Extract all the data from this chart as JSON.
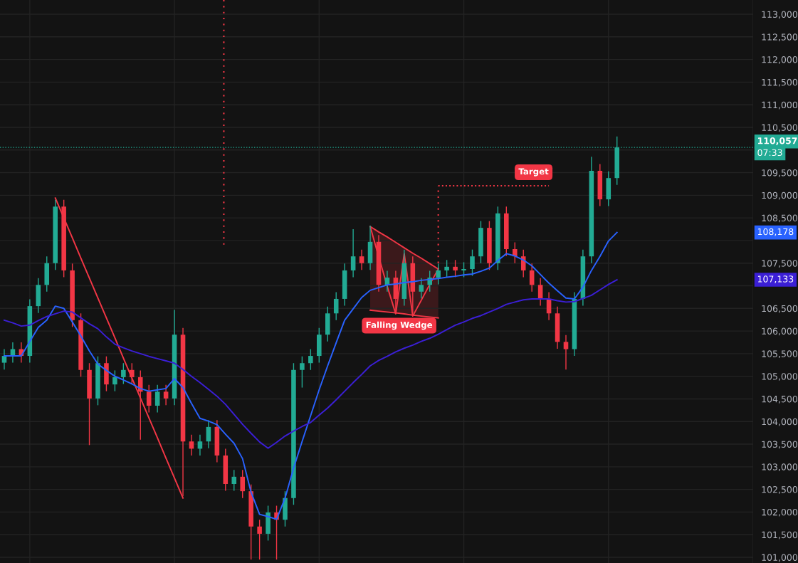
{
  "chart_data": {
    "type": "candlestick",
    "categories": [
      null,
      null,
      null,
      null,
      null,
      null,
      null,
      null,
      null,
      null,
      null,
      null,
      null,
      null,
      null,
      null,
      null,
      null,
      null,
      null,
      null,
      null,
      null,
      null,
      null,
      null,
      null,
      null,
      null,
      null,
      null,
      null,
      null,
      null,
      null,
      null,
      null,
      null,
      null,
      null,
      null,
      null,
      null,
      null,
      null,
      null,
      null,
      null,
      null,
      null,
      null,
      null,
      null,
      null,
      null,
      null,
      null,
      null,
      null,
      null,
      null,
      null,
      null,
      null,
      null,
      null,
      null,
      null,
      null,
      null,
      null,
      null,
      null
    ],
    "ohlc": [
      [
        105300,
        105600,
        105150,
        105450
      ],
      [
        105450,
        105750,
        105300,
        105600
      ],
      [
        105600,
        105750,
        105300,
        105450
      ],
      [
        105450,
        106700,
        105300,
        106550
      ],
      [
        106550,
        107170,
        106400,
        107020
      ],
      [
        107020,
        107650,
        106870,
        107500
      ],
      [
        107500,
        108900,
        107350,
        108750
      ],
      [
        108750,
        108900,
        107190,
        107340
      ],
      [
        107340,
        107490,
        106090,
        106240
      ],
      [
        106240,
        106390,
        104990,
        105140
      ],
      [
        105140,
        105290,
        103480,
        104510
      ],
      [
        104510,
        105440,
        104360,
        105290
      ],
      [
        105290,
        105440,
        104670,
        104820
      ],
      [
        104820,
        105130,
        104670,
        104980
      ],
      [
        104980,
        105290,
        104830,
        105140
      ],
      [
        105140,
        105290,
        104830,
        104980
      ],
      [
        104980,
        105130,
        103600,
        104660
      ],
      [
        104660,
        104810,
        104200,
        104350
      ],
      [
        104350,
        104810,
        104200,
        104660
      ],
      [
        104660,
        104810,
        104360,
        104510
      ],
      [
        104510,
        106470,
        104360,
        105920
      ],
      [
        105920,
        106070,
        102350,
        103560
      ],
      [
        103560,
        103710,
        103250,
        103400
      ],
      [
        103400,
        103710,
        103250,
        103560
      ],
      [
        103560,
        104030,
        103410,
        103880
      ],
      [
        103880,
        104030,
        103100,
        103250
      ],
      [
        103250,
        103400,
        102470,
        102620
      ],
      [
        102620,
        102930,
        102470,
        102780
      ],
      [
        102780,
        102930,
        102310,
        102460
      ],
      [
        102460,
        102610,
        100950,
        101680
      ],
      [
        101680,
        101830,
        100950,
        101520
      ],
      [
        101520,
        102140,
        101370,
        101990
      ],
      [
        101990,
        102140,
        100950,
        101830
      ],
      [
        101830,
        102460,
        101680,
        102310
      ],
      [
        102310,
        105290,
        102160,
        105140
      ],
      [
        105140,
        105440,
        104750,
        105290
      ],
      [
        105290,
        105600,
        105140,
        105450
      ],
      [
        105450,
        106070,
        105300,
        105920
      ],
      [
        105920,
        106540,
        105770,
        106390
      ],
      [
        106390,
        106860,
        106240,
        106710
      ],
      [
        106710,
        107490,
        106560,
        107340
      ],
      [
        107340,
        108250,
        107190,
        107650
      ],
      [
        107650,
        107800,
        107350,
        107500
      ],
      [
        107500,
        108330,
        107350,
        107970
      ],
      [
        107970,
        108120,
        106870,
        107020
      ],
      [
        107020,
        107330,
        106870,
        107180
      ],
      [
        107180,
        107330,
        106400,
        106710
      ],
      [
        106710,
        107800,
        106560,
        107500
      ],
      [
        107500,
        107650,
        106400,
        106870
      ],
      [
        106870,
        107170,
        106720,
        107020
      ],
      [
        107020,
        107330,
        106870,
        107180
      ],
      [
        107180,
        107490,
        107030,
        107340
      ],
      [
        107340,
        107570,
        107190,
        107420
      ],
      [
        107420,
        107570,
        107190,
        107340
      ],
      [
        107340,
        107520,
        107190,
        107370
      ],
      [
        107370,
        107800,
        107220,
        107650
      ],
      [
        107650,
        108430,
        107500,
        108280
      ],
      [
        108280,
        108430,
        107350,
        107500
      ],
      [
        107500,
        108750,
        107350,
        108600
      ],
      [
        108600,
        108750,
        107660,
        107810
      ],
      [
        107810,
        107960,
        107500,
        107650
      ],
      [
        107650,
        107800,
        107190,
        107340
      ],
      [
        107340,
        107490,
        106870,
        107020
      ],
      [
        107020,
        107170,
        106560,
        106710
      ],
      [
        106710,
        106860,
        106240,
        106390
      ],
      [
        106390,
        106540,
        105610,
        105760
      ],
      [
        105760,
        105910,
        105150,
        105600
      ],
      [
        105600,
        106860,
        105450,
        106710
      ],
      [
        106710,
        107800,
        106560,
        107650
      ],
      [
        107650,
        109850,
        107500,
        109540
      ],
      [
        109540,
        109690,
        108760,
        108910
      ],
      [
        108910,
        109530,
        108760,
        109380
      ],
      [
        109380,
        110300,
        109230,
        110057
      ]
    ],
    "series": [
      {
        "type": "line",
        "color": "#2962ff",
        "values": [
          105450,
          105450,
          105450,
          105770,
          106080,
          106240,
          106550,
          106500,
          106200,
          105890,
          105560,
          105270,
          105130,
          105000,
          104920,
          104830,
          104730,
          104670,
          104700,
          104730,
          104950,
          104750,
          104400,
          104070,
          104010,
          103930,
          103720,
          103520,
          103180,
          102440,
          101950,
          101900,
          101840,
          102310,
          102970,
          103560,
          104130,
          104700,
          105230,
          105740,
          106240,
          106490,
          106740,
          106900,
          106960,
          107020,
          107040,
          107070,
          107090,
          107120,
          107140,
          107160,
          107190,
          107210,
          107240,
          107260,
          107320,
          107390,
          107560,
          107710,
          107660,
          107570,
          107440,
          107250,
          107060,
          106890,
          106730,
          106710,
          106970,
          107340,
          107650,
          107990,
          108178
        ]
      },
      {
        "type": "line",
        "color": "#3b1fd6",
        "values": [
          106240,
          106180,
          106110,
          106130,
          106230,
          106320,
          106380,
          106440,
          106420,
          106290,
          106160,
          106050,
          105870,
          105710,
          105630,
          105560,
          105500,
          105440,
          105390,
          105340,
          105290,
          105150,
          105000,
          104860,
          104710,
          104560,
          104380,
          104160,
          103940,
          103740,
          103550,
          103410,
          103540,
          103680,
          103790,
          103890,
          103980,
          104140,
          104300,
          104480,
          104670,
          104860,
          105040,
          105230,
          105350,
          105440,
          105540,
          105620,
          105690,
          105770,
          105840,
          105930,
          106030,
          106130,
          106200,
          106280,
          106340,
          106420,
          106500,
          106590,
          106640,
          106690,
          106710,
          106710,
          106710,
          106670,
          106640,
          106650,
          106720,
          106790,
          106910,
          107030,
          107133
        ]
      },
      {
        "type": "line",
        "color": "#f23645",
        "values": [
          null,
          null,
          null,
          null,
          null,
          null,
          108940,
          108500,
          108060,
          107610,
          107170,
          106730,
          106290,
          105850,
          105400,
          104960,
          104520,
          104080,
          103640,
          103190,
          102750,
          102310,
          null,
          null,
          null,
          null,
          null,
          null,
          null,
          null,
          null,
          null,
          null,
          null,
          null,
          null,
          null,
          null,
          null,
          null,
          null,
          null,
          null,
          null,
          null,
          null,
          null,
          null,
          null,
          null,
          null,
          null,
          null,
          null,
          null,
          null,
          null,
          null,
          null,
          null,
          null,
          null,
          null,
          null,
          null,
          null,
          null,
          null,
          null,
          null,
          null,
          null,
          null
        ]
      },
      {
        "type": "line",
        "color": "#f23645",
        "values": [
          null,
          null,
          null,
          null,
          null,
          null,
          null,
          null,
          null,
          null,
          null,
          null,
          null,
          null,
          null,
          null,
          null,
          null,
          null,
          null,
          null,
          null,
          null,
          null,
          null,
          null,
          null,
          null,
          null,
          null,
          null,
          null,
          null,
          null,
          null,
          null,
          null,
          null,
          null,
          null,
          null,
          null,
          null,
          108310,
          108190,
          108080,
          107960,
          107840,
          107720,
          107610,
          107490,
          107370,
          null,
          null,
          null,
          null,
          null,
          null,
          null,
          null,
          null,
          null,
          null,
          null,
          null,
          null,
          null,
          null,
          null,
          null,
          null,
          null,
          null
        ]
      },
      {
        "type": "line",
        "color": "#f23645",
        "values": [
          null,
          null,
          null,
          null,
          null,
          null,
          null,
          null,
          null,
          null,
          null,
          null,
          null,
          null,
          null,
          null,
          null,
          null,
          null,
          null,
          null,
          null,
          null,
          null,
          null,
          null,
          null,
          null,
          null,
          null,
          null,
          null,
          null,
          null,
          null,
          null,
          null,
          null,
          null,
          null,
          null,
          null,
          null,
          106460,
          106440,
          106420,
          106400,
          106380,
          106350,
          106330,
          106310,
          106290,
          null,
          null,
          null,
          null,
          null,
          null,
          null,
          null,
          null,
          null,
          null,
          null,
          null,
          null,
          null,
          null,
          null,
          null,
          null,
          null,
          null
        ]
      },
      {
        "type": "line",
        "color": "#f23645",
        "values": [
          null,
          null,
          null,
          null,
          null,
          null,
          null,
          null,
          null,
          null,
          null,
          null,
          null,
          null,
          null,
          null,
          null,
          null,
          null,
          null,
          null,
          null,
          null,
          null,
          null,
          null,
          null,
          null,
          null,
          null,
          null,
          null,
          null,
          null,
          null,
          null,
          null,
          null,
          null,
          null,
          null,
          null,
          null,
          108310,
          107640,
          106990,
          106380,
          107710,
          106330,
          106680,
          107030,
          107370,
          null,
          null,
          null,
          null,
          null,
          null,
          null,
          null,
          null,
          null,
          null,
          null,
          null,
          null,
          null,
          null,
          null,
          null,
          null,
          null,
          null
        ]
      },
      {
        "type": "line",
        "color": "#f23645",
        "line_style": "dotted",
        "values": [
          null,
          null,
          null,
          null,
          null,
          null,
          null,
          null,
          null,
          null,
          null,
          null,
          null,
          null,
          null,
          null,
          null,
          null,
          null,
          null,
          null,
          null,
          null,
          null,
          null,
          null,
          null,
          null,
          null,
          null,
          null,
          null,
          null,
          null,
          null,
          null,
          null,
          null,
          null,
          null,
          null,
          null,
          null,
          null,
          null,
          null,
          null,
          null,
          null,
          null,
          null,
          109210,
          109210,
          109210,
          109210,
          109210,
          109210,
          109210,
          109210,
          109210,
          109210,
          109210,
          109210,
          109210,
          109210,
          null,
          null,
          null,
          null,
          null,
          null,
          null,
          null
        ]
      }
    ],
    "ylim": [
      100874,
      113315
    ],
    "yticks": [
      {
        "value": 101000,
        "label": "101,000"
      },
      {
        "value": 101500,
        "label": "101,500"
      },
      {
        "value": 102000,
        "label": "102,000"
      },
      {
        "value": 102500,
        "label": "102,500"
      },
      {
        "value": 103000,
        "label": "103,000"
      },
      {
        "value": 103500,
        "label": "103,500"
      },
      {
        "value": 104000,
        "label": "104,000"
      },
      {
        "value": 104500,
        "label": "104,500"
      },
      {
        "value": 105000,
        "label": "105,000"
      },
      {
        "value": 105500,
        "label": "105,500"
      },
      {
        "value": 106000,
        "label": "106,000"
      },
      {
        "value": 106500,
        "label": "106,500"
      },
      {
        "value": 107000,
        "label": null
      },
      {
        "value": 107500,
        "label": "107,500"
      },
      {
        "value": 108000,
        "label": null
      },
      {
        "value": 108500,
        "label": "108,500"
      },
      {
        "value": 109000,
        "label": "109,000"
      },
      {
        "value": 109500,
        "label": "109,500"
      },
      {
        "value": 110000,
        "label": null
      },
      {
        "value": 110500,
        "label": "110,500"
      },
      {
        "value": 111000,
        "label": "111,000"
      },
      {
        "value": 111500,
        "label": "111,500"
      },
      {
        "value": 112000,
        "label": "112,000"
      },
      {
        "value": 112500,
        "label": "112,500"
      },
      {
        "value": 113000,
        "label": "113,000"
      }
    ],
    "tick_labels": "y",
    "grid": true,
    "ref_lines": [
      {
        "axis": "y",
        "value": 110057,
        "label": "110,057",
        "color": "#22ab94",
        "line_style": "dotted"
      }
    ],
    "annotations": [
      "07:33",
      "108,178",
      "107,133",
      "Target",
      "Falling Wedge"
    ]
  }
}
